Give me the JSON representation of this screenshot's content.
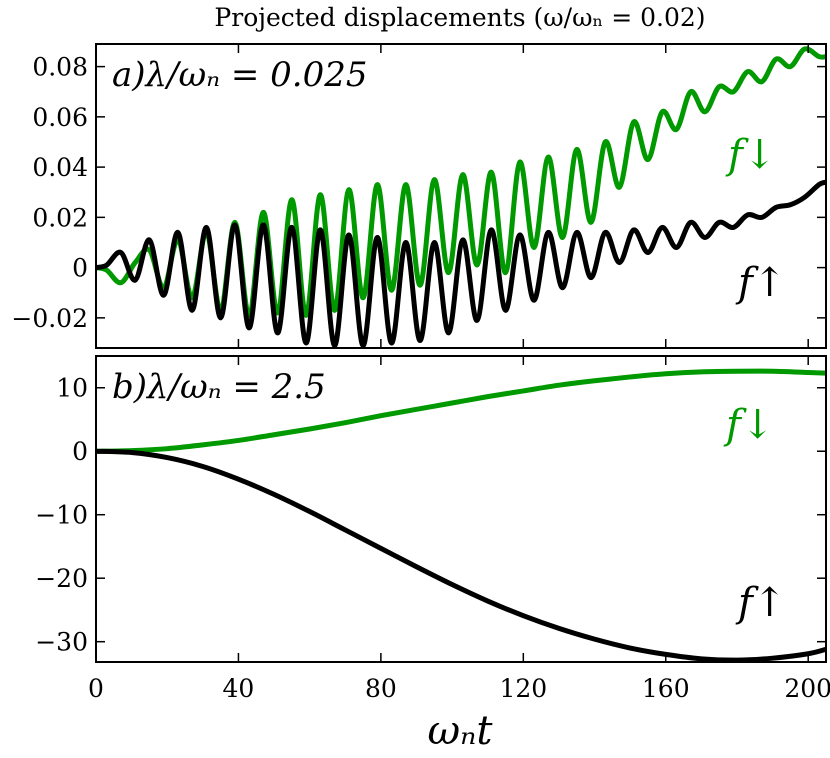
{
  "figure": {
    "title": "Projected displacements (ω/ωₙ = 0.02)",
    "xlabel": "ωₙt"
  },
  "chart_data": [
    {
      "type": "line",
      "panel_label": "a)λ/ωₙ = 0.025",
      "xlim": [
        0,
        205
      ],
      "ylim": [
        -0.032,
        0.089
      ],
      "x_ticks": [
        0,
        40,
        80,
        120,
        160,
        200
      ],
      "y_ticks": [
        -0.02,
        0,
        0.02,
        0.04,
        0.06,
        0.08
      ],
      "y_tick_labels": [
        "−0.02",
        "0",
        "0.02",
        "0.04",
        "0.06",
        "0.08"
      ],
      "grid": false,
      "series": [
        {
          "name": "f↓",
          "color": "#009900",
          "x": [
            0,
            3,
            7,
            11,
            15,
            19,
            23,
            27,
            31,
            35,
            39,
            43,
            47,
            51,
            55,
            59,
            63,
            67,
            71,
            75,
            79,
            83,
            87,
            91,
            95,
            99,
            103,
            107,
            111,
            115,
            119,
            123,
            127,
            131,
            135,
            139,
            143,
            147,
            151,
            155,
            159,
            163,
            167,
            171,
            175,
            179,
            183,
            187,
            191,
            195,
            199,
            203,
            205
          ],
          "y": [
            0,
            -0.001,
            -0.006,
            0.002,
            0.007,
            -0.008,
            0.011,
            -0.012,
            0.014,
            -0.017,
            0.018,
            -0.019,
            0.022,
            -0.018,
            0.027,
            -0.019,
            0.029,
            -0.017,
            0.031,
            -0.012,
            0.033,
            -0.009,
            0.033,
            -0.007,
            0.035,
            -0.002,
            0.037,
            0.001,
            0.038,
            -0.002,
            0.042,
            0.008,
            0.044,
            0.012,
            0.047,
            0.018,
            0.05,
            0.032,
            0.058,
            0.043,
            0.062,
            0.055,
            0.07,
            0.062,
            0.072,
            0.07,
            0.078,
            0.074,
            0.083,
            0.08,
            0.087,
            0.084,
            0.084
          ]
        },
        {
          "name": "f↑",
          "color": "#000000",
          "x": [
            0,
            3,
            7,
            11,
            15,
            19,
            23,
            27,
            31,
            35,
            39,
            43,
            47,
            51,
            55,
            59,
            63,
            67,
            71,
            75,
            79,
            83,
            87,
            91,
            95,
            99,
            103,
            107,
            111,
            115,
            119,
            123,
            127,
            131,
            135,
            139,
            143,
            147,
            151,
            155,
            159,
            163,
            167,
            171,
            175,
            179,
            183,
            187,
            191,
            195,
            199,
            203,
            205
          ],
          "y": [
            0,
            0.001,
            0.006,
            -0.005,
            0.011,
            -0.011,
            0.014,
            -0.017,
            0.016,
            -0.02,
            0.017,
            -0.024,
            0.017,
            -0.026,
            0.016,
            -0.03,
            0.015,
            -0.031,
            0.013,
            -0.031,
            0.012,
            -0.03,
            0.01,
            -0.029,
            0.01,
            -0.026,
            0.011,
            -0.021,
            0.015,
            -0.017,
            0.013,
            -0.013,
            0.014,
            -0.008,
            0.014,
            -0.004,
            0.014,
            0.002,
            0.015,
            0.006,
            0.016,
            0.008,
            0.018,
            0.012,
            0.018,
            0.016,
            0.021,
            0.02,
            0.024,
            0.025,
            0.028,
            0.033,
            0.034
          ]
        }
      ]
    },
    {
      "type": "line",
      "panel_label": "b)λ/ωₙ = 2.5",
      "xlim": [
        0,
        205
      ],
      "ylim": [
        -33.2,
        15.0
      ],
      "x_ticks": [
        0,
        40,
        80,
        120,
        160,
        200
      ],
      "x_tick_labels": [
        "0",
        "40",
        "80",
        "120",
        "160",
        "200"
      ],
      "y_ticks": [
        -30,
        -20,
        -10,
        0,
        10
      ],
      "y_tick_labels": [
        "−30",
        "−20",
        "−10",
        "0",
        "10"
      ],
      "grid": false,
      "series": [
        {
          "name": "f↓",
          "color": "#009900",
          "x": [
            0,
            10,
            20,
            30,
            40,
            50,
            60,
            70,
            80,
            90,
            100,
            110,
            120,
            130,
            140,
            150,
            160,
            170,
            180,
            190,
            200,
            205
          ],
          "y": [
            0,
            0.1,
            0.4,
            1.0,
            1.7,
            2.6,
            3.5,
            4.5,
            5.6,
            6.6,
            7.6,
            8.6,
            9.5,
            10.4,
            11.1,
            11.7,
            12.2,
            12.5,
            12.6,
            12.6,
            12.4,
            12.3
          ]
        },
        {
          "name": "f↑",
          "color": "#000000",
          "x": [
            0,
            10,
            20,
            30,
            40,
            50,
            60,
            70,
            80,
            90,
            100,
            110,
            120,
            130,
            140,
            150,
            160,
            170,
            180,
            190,
            200,
            205
          ],
          "y": [
            0,
            -0.2,
            -1.0,
            -2.4,
            -4.4,
            -6.8,
            -9.5,
            -12.4,
            -15.3,
            -18.2,
            -21.0,
            -23.6,
            -25.9,
            -27.9,
            -29.6,
            -31.0,
            -32.0,
            -32.7,
            -32.9,
            -32.6,
            -31.9,
            -31.2
          ]
        }
      ]
    }
  ]
}
